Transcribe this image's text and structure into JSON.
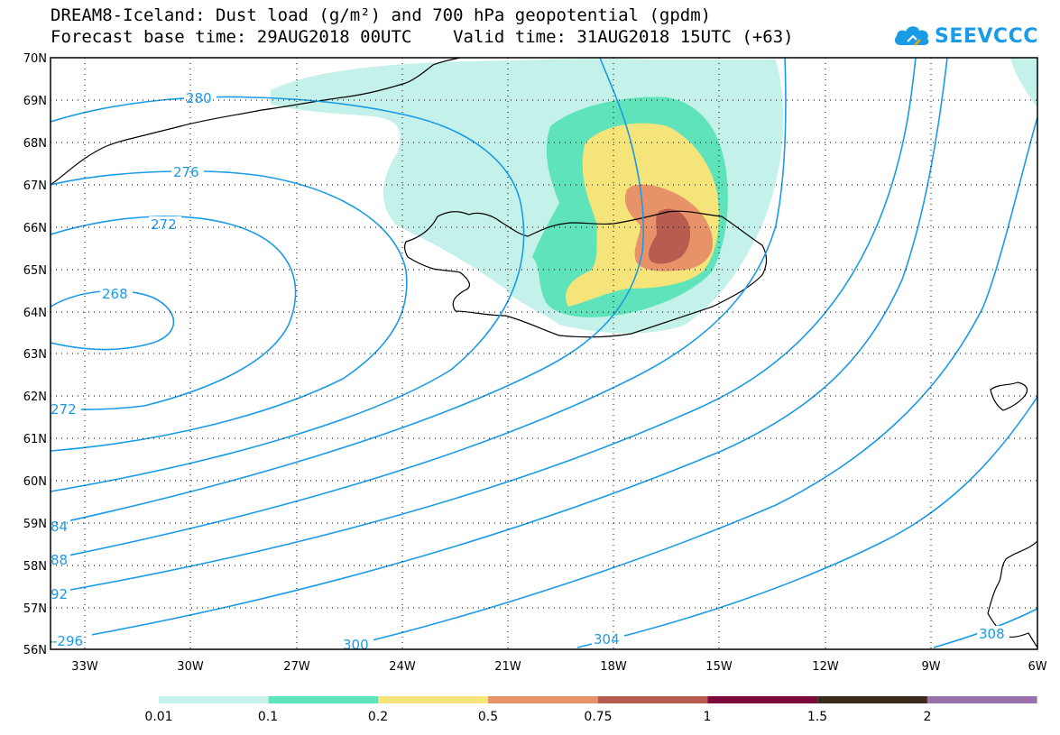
{
  "title": {
    "line1": "DREAM8-Iceland: Dust load (g/m²) and 700 hPa geopotential (gpdm)",
    "line2": "Forecast base time: 29AUG2018 00UTC    Valid time: 31AUG2018 15UTC (+63)"
  },
  "logo": {
    "text": "SEEVCCC",
    "icon": "cloud-icon"
  },
  "axes": {
    "lat_labels": [
      "70N",
      "69N",
      "68N",
      "67N",
      "66N",
      "65N",
      "64N",
      "63N",
      "62N",
      "61N",
      "60N",
      "59N",
      "58N",
      "57N",
      "56N"
    ],
    "lon_labels": [
      "33W",
      "30W",
      "27W",
      "24W",
      "21W",
      "18W",
      "15W",
      "12W",
      "9W",
      "6W"
    ],
    "lat_range": [
      56,
      70
    ],
    "lon_range": [
      -34,
      -6
    ],
    "grid": "dotted"
  },
  "contours": {
    "variable": "700 hPa geopotential (gpdm)",
    "color": "#1a9be6",
    "labels": [
      "280",
      "276",
      "272",
      "268",
      "272",
      "84",
      "88",
      "92",
      "-296",
      "300",
      "304",
      "308"
    ]
  },
  "dust": {
    "variable": "Dust load (g/m²)",
    "levels": [
      "0.01",
      "0.1",
      "0.2",
      "0.5",
      "0.75",
      "1",
      "1.5",
      "2"
    ],
    "colors": [
      "#c4f2ea",
      "#5ee3bb",
      "#f5e47a",
      "#e8926a",
      "#b85c50",
      "#7d0a3a",
      "#3d2a1a",
      "#9a70a8"
    ]
  }
}
